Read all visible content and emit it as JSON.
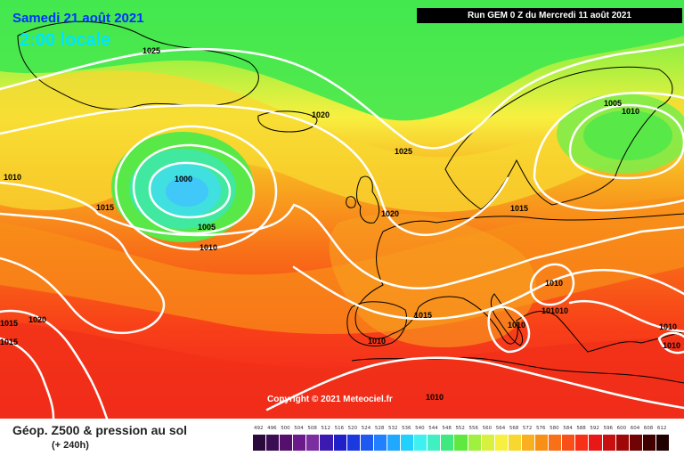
{
  "header": {
    "date": "Samedi 21 août 2021",
    "time": "2:00 locale",
    "run": "Run GEM 0 Z du Mercredi 11 août 2021"
  },
  "copyright": "Copyright © 2021 Meteociel.fr",
  "footer": {
    "title": "Géop. Z500 & pression au sol",
    "subtitle": "(+ 240h)"
  },
  "legend": {
    "labels": [
      "492",
      "496",
      "500",
      "504",
      "508",
      "512",
      "516",
      "520",
      "524",
      "528",
      "532",
      "536",
      "540",
      "544",
      "548",
      "552",
      "556",
      "560",
      "564",
      "568",
      "572",
      "576",
      "580",
      "584",
      "588",
      "592",
      "596",
      "600",
      "604",
      "608",
      "612"
    ],
    "colors": [
      "#2a0a3a",
      "#3b0d52",
      "#55106e",
      "#6a1a8a",
      "#7a2ea0",
      "#3a1ab0",
      "#2020c8",
      "#1a3ae0",
      "#1e5af0",
      "#2080ff",
      "#20a8ff",
      "#20d0ff",
      "#40f0f0",
      "#40f0c0",
      "#40e880",
      "#60e840",
      "#a0f040",
      "#d8f040",
      "#f8f040",
      "#f8d830",
      "#f8b020",
      "#f89018",
      "#f87018",
      "#f85018",
      "#f83018",
      "#e81818",
      "#c81010",
      "#a00808",
      "#700404",
      "#400000",
      "#200000"
    ]
  },
  "isobars": [
    "1025",
    "1020",
    "1025",
    "1010",
    "1005",
    "1010",
    "1015",
    "1000",
    "1005",
    "1010",
    "1020",
    "1015",
    "1010",
    "1015",
    "1020",
    "1015",
    "1010",
    "1010",
    "1010",
    "101010",
    "1015",
    "1010",
    "1010"
  ],
  "colors": {
    "land_outline": "#000000",
    "isobar": "#ffffff"
  }
}
